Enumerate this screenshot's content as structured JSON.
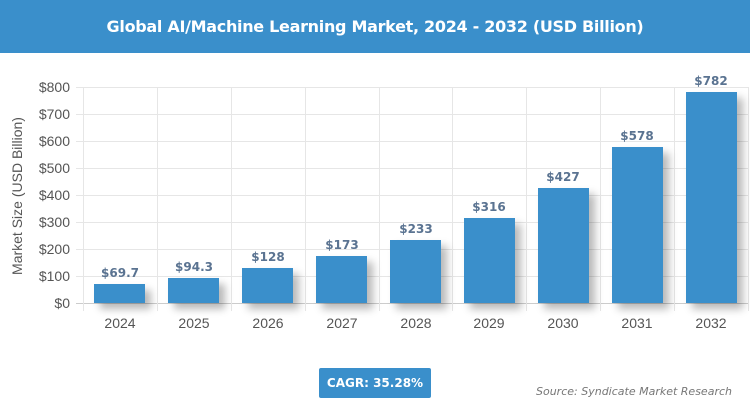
{
  "header": {
    "title": "Global AI/Machine Learning Market, 2024 - 2032 (USD Billion)"
  },
  "footer": {
    "cagr": "CAGR: 35.28%",
    "source": "Source: Syndicate Market Research"
  },
  "colors": {
    "bar": "#3a8fcb",
    "header": "#3a8fcb",
    "label": "#5a7391"
  },
  "chart_data": {
    "type": "bar",
    "title": "Global AI/Machine Learning Market, 2024 - 2032 (USD Billion)",
    "xlabel": "",
    "ylabel": "Market Size (USD Billion)",
    "categories": [
      "2024",
      "2025",
      "2026",
      "2027",
      "2028",
      "2029",
      "2030",
      "2031",
      "2032"
    ],
    "values": [
      69.7,
      94.3,
      128,
      173,
      233,
      316,
      427,
      578,
      782
    ],
    "value_labels": [
      "$69.7",
      "$94.3",
      "$128",
      "$173",
      "$233",
      "$316",
      "$427",
      "$578",
      "$782"
    ],
    "ylim": [
      0,
      800
    ],
    "yticks": [
      "$0",
      "$100",
      "$200",
      "$300",
      "$400",
      "$500",
      "$600",
      "$700",
      "$800"
    ],
    "grid": true,
    "legend": "none",
    "annotation": "CAGR: 35.28%",
    "source": "Source: Syndicate Market Research"
  }
}
